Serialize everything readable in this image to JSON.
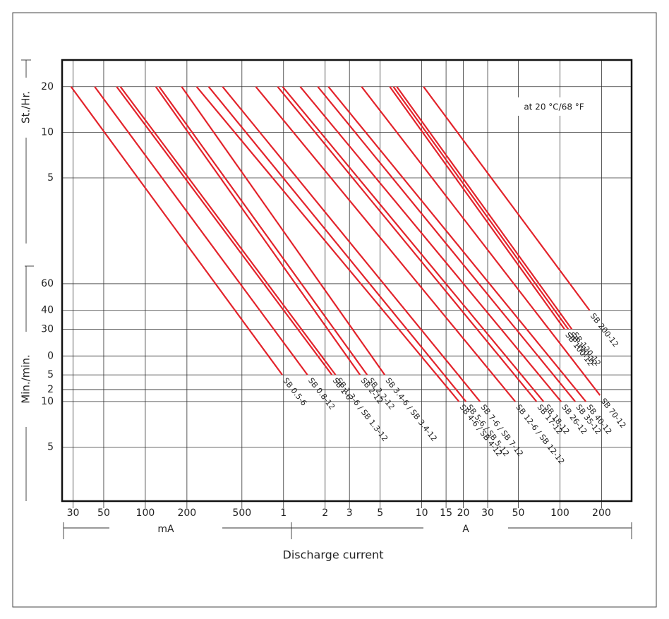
{
  "chart_data": {
    "type": "line",
    "annotation": "at 20 °C/68 °F",
    "y_label_upper": "St./Hr.",
    "y_label_lower": "Min./min.",
    "x_label": "Discharge current",
    "x_unit_left": "mA",
    "x_unit_right": "A",
    "log_x": true,
    "log_y": true,
    "grid": true,
    "color": "#e3232b",
    "xlim": [
      25,
      330000
    ],
    "xticks": [
      30,
      50,
      100,
      200,
      500,
      {
        "value": 1000,
        "label": "1"
      },
      {
        "value": 2000,
        "label": "2"
      },
      {
        "value": 3000,
        "label": "3"
      },
      {
        "value": 5000,
        "label": "5"
      },
      {
        "value": 10000,
        "label": "10"
      },
      {
        "value": 15000,
        "label": "15"
      },
      {
        "value": 20000,
        "label": "20"
      },
      {
        "value": 30000,
        "label": "30"
      },
      {
        "value": 50000,
        "label": "50"
      },
      {
        "value": 100000,
        "label": "100"
      },
      {
        "value": 200000,
        "label": "200"
      }
    ],
    "ylim": [
      2.2,
      1800
    ],
    "yticks": [
      {
        "value": 1200,
        "label": "20"
      },
      {
        "value": 600,
        "label": "10"
      },
      {
        "value": 300,
        "label": "5"
      },
      60,
      40,
      30,
      {
        "value": 20,
        "label": "0"
      },
      {
        "value": 15,
        "label": "5"
      },
      {
        "value": 12,
        "label": "2"
      },
      10,
      5
    ],
    "series": [
      {
        "name": "SB 0.5-6",
        "x": [
          29,
          980
        ],
        "values": [
          1200,
          15
        ]
      },
      {
        "name": "SB 0.8-12",
        "x": [
          43,
          1490
        ],
        "values": [
          1200,
          15
        ]
      },
      {
        "name": "SB 1-6",
        "x": [
          62,
          2240
        ],
        "values": [
          1200,
          15
        ]
      },
      {
        "name": "SB 1.3-6 / SB 1.3-12",
        "x": [
          66,
          2380
        ],
        "values": [
          1200,
          15
        ]
      },
      {
        "name": "SB 2-12",
        "x": [
          119,
          3580
        ],
        "values": [
          1200,
          15
        ]
      },
      {
        "name": "SB 2.2-12",
        "x": [
          126,
          4030
        ],
        "values": [
          1200,
          15
        ]
      },
      {
        "name": "SB 3.4-6 / SB 3.4-12",
        "x": [
          183,
          5400
        ],
        "values": [
          1200,
          15
        ]
      },
      {
        "name": "SB 4-6 / SB 4-12",
        "x": [
          235,
          18600
        ],
        "values": [
          1200,
          10
        ]
      },
      {
        "name": "SB 5-6 / SB 5-12",
        "x": [
          287,
          20900
        ],
        "values": [
          1200,
          10
        ]
      },
      {
        "name": "SB 7-6 / SB 7-12",
        "x": [
          362,
          26400
        ],
        "values": [
          1200,
          10
        ]
      },
      {
        "name": "SB 12-6 / SB 12-12",
        "x": [
          630,
          47500
        ],
        "values": [
          1200,
          10
        ]
      },
      {
        "name": "SB 17-12",
        "x": [
          906,
          67700
        ],
        "values": [
          1200,
          10
        ]
      },
      {
        "name": "SB 18-12",
        "x": [
          984,
          76100
        ],
        "values": [
          1200,
          10
        ]
      },
      {
        "name": "SB 26-12",
        "x": [
          1320,
          102000
        ],
        "values": [
          1200,
          10
        ]
      },
      {
        "name": "SB 35-12",
        "x": [
          1770,
          129000
        ],
        "values": [
          1200,
          10
        ]
      },
      {
        "name": "SB 40-12",
        "x": [
          2110,
          154000
        ],
        "values": [
          1200,
          10
        ]
      },
      {
        "name": "SB 70-12",
        "x": [
          3670,
          195000
        ],
        "values": [
          1200,
          11
        ]
      },
      {
        "name": "SB 100-12",
        "x": [
          5870,
          108000
        ],
        "values": [
          1200,
          30
        ]
      },
      {
        "name": "SB 110-12",
        "x": [
          6230,
          115000
        ],
        "values": [
          1200,
          30
        ]
      },
      {
        "name": "SB 120-12",
        "x": [
          6600,
          122000
        ],
        "values": [
          1200,
          30
        ]
      },
      {
        "name": "SB 200-12",
        "x": [
          10300,
          164000
        ],
        "values": [
          1200,
          40
        ]
      }
    ]
  }
}
